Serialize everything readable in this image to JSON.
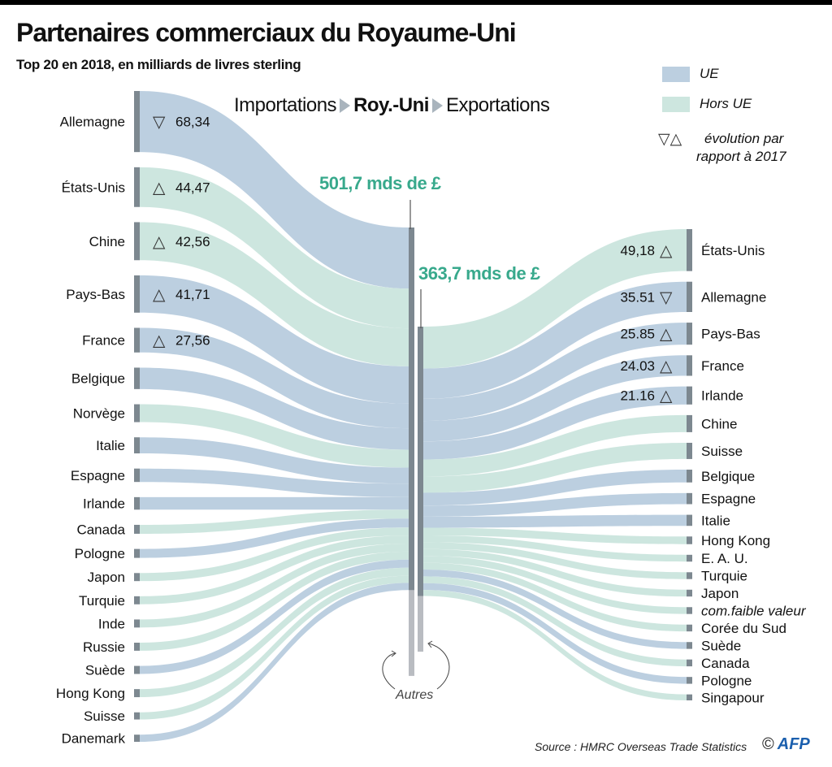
{
  "chart_data": {
    "type": "sankey",
    "title": "Partenaires commerciaux du Royaume-Uni",
    "subtitle": "Top 20 en 2018, en milliards de livres sterling",
    "header": {
      "imports": "Importations",
      "center": "Roy.-Uni",
      "exports": "Exportations"
    },
    "legend": {
      "eu": "UE",
      "non_eu": "Hors UE",
      "evolution_symbols": "▽△",
      "evolution": "évolution par",
      "evolution2": "rapport à 2017"
    },
    "colors": {
      "eu": "#bccfe0",
      "non_eu": "#cde6df",
      "node": "#7d8890",
      "others": "#b9bcc1",
      "total": "#38a98c"
    },
    "imports": {
      "total_label": "501,7 mds de £",
      "total": 501.7,
      "partners": [
        {
          "name": "Allemagne",
          "value": 68.34,
          "group": "eu",
          "change": "down",
          "value_label": "68,34"
        },
        {
          "name": "États-Unis",
          "value": 44.47,
          "group": "non_eu",
          "change": "up",
          "value_label": "44,47"
        },
        {
          "name": "Chine",
          "value": 42.56,
          "group": "non_eu",
          "change": "up",
          "value_label": "42,56"
        },
        {
          "name": "Pays-Bas",
          "value": 41.71,
          "group": "eu",
          "change": "up",
          "value_label": "41,71"
        },
        {
          "name": "France",
          "value": 27.56,
          "group": "eu",
          "change": "up",
          "value_label": "27,56"
        },
        {
          "name": "Belgique",
          "value": 24,
          "group": "eu"
        },
        {
          "name": "Norvège",
          "value": 20,
          "group": "non_eu"
        },
        {
          "name": "Italie",
          "value": 18,
          "group": "eu"
        },
        {
          "name": "Espagne",
          "value": 15,
          "group": "eu"
        },
        {
          "name": "Irlande",
          "value": 14,
          "group": "eu"
        },
        {
          "name": "Canada",
          "value": 10,
          "group": "non_eu"
        },
        {
          "name": "Pologne",
          "value": 10,
          "group": "eu"
        },
        {
          "name": "Japon",
          "value": 9,
          "group": "non_eu"
        },
        {
          "name": "Turquie",
          "value": 9,
          "group": "non_eu"
        },
        {
          "name": "Inde",
          "value": 9,
          "group": "non_eu"
        },
        {
          "name": "Russie",
          "value": 9,
          "group": "non_eu"
        },
        {
          "name": "Suède",
          "value": 9,
          "group": "eu"
        },
        {
          "name": "Hong Kong",
          "value": 9,
          "group": "non_eu"
        },
        {
          "name": "Suisse",
          "value": 8,
          "group": "non_eu"
        },
        {
          "name": "Danemark",
          "value": 8,
          "group": "eu"
        }
      ]
    },
    "exports": {
      "total_label": "363,7 mds de £",
      "total": 363.7,
      "partners": [
        {
          "name": "États-Unis",
          "value": 49.18,
          "group": "non_eu",
          "change": "up",
          "value_label": "49,18"
        },
        {
          "name": "Allemagne",
          "value": 35.51,
          "group": "eu",
          "change": "down",
          "value_label": "35.51"
        },
        {
          "name": "Pays-Bas",
          "value": 25.85,
          "group": "eu",
          "change": "up",
          "value_label": "25.85"
        },
        {
          "name": "France",
          "value": 24.03,
          "group": "eu",
          "change": "up",
          "value_label": "24.03"
        },
        {
          "name": "Irlande",
          "value": 21.16,
          "group": "eu",
          "change": "up",
          "value_label": "21.16"
        },
        {
          "name": "Chine",
          "value": 20,
          "group": "non_eu"
        },
        {
          "name": "Suisse",
          "value": 19,
          "group": "non_eu"
        },
        {
          "name": "Belgique",
          "value": 15,
          "group": "eu"
        },
        {
          "name": "Espagne",
          "value": 13,
          "group": "eu"
        },
        {
          "name": "Italie",
          "value": 13,
          "group": "eu"
        },
        {
          "name": "Hong Kong",
          "value": 9,
          "group": "non_eu"
        },
        {
          "name": "E. A. U.",
          "value": 8,
          "group": "non_eu"
        },
        {
          "name": "Turquie",
          "value": 8,
          "group": "non_eu"
        },
        {
          "name": "Japon",
          "value": 8,
          "group": "non_eu"
        },
        {
          "name": "com.faible valeur",
          "value": 8,
          "group": "non_eu",
          "italic": true
        },
        {
          "name": "Corée du Sud",
          "value": 8,
          "group": "non_eu"
        },
        {
          "name": "Suède",
          "value": 8,
          "group": "eu"
        },
        {
          "name": "Canada",
          "value": 8,
          "group": "non_eu"
        },
        {
          "name": "Pologne",
          "value": 8,
          "group": "eu"
        },
        {
          "name": "Singapour",
          "value": 7,
          "group": "non_eu"
        }
      ]
    },
    "others_label": "Autres",
    "source": "Source : HMRC Overseas Trade Statistics",
    "credit_symbol": "©",
    "credit": "AFP"
  }
}
